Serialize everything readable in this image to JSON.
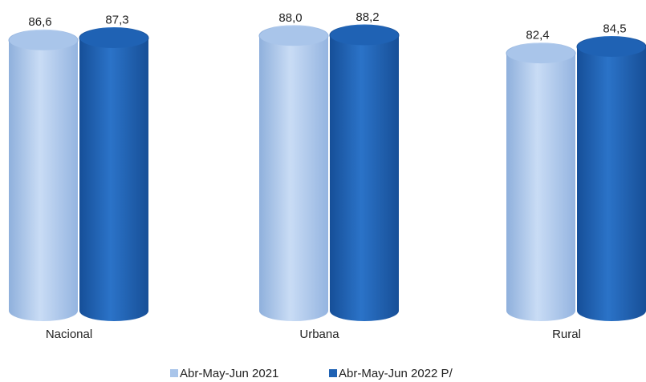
{
  "chart_data": {
    "type": "bar",
    "categories": [
      "Nacional",
      "Urbana",
      "Rural"
    ],
    "series": [
      {
        "name": "Abr-May-Jun 2021",
        "color": "#a9c5ea",
        "values": [
          86.6,
          88.0,
          82.4
        ],
        "value_labels": [
          "86,6",
          "88,0",
          "82,4"
        ]
      },
      {
        "name": "Abr-May-Jun 2022 P/",
        "color": "#1f62b4",
        "values": [
          87.3,
          88.2,
          84.5
        ],
        "value_labels": [
          "87,3",
          "88,2",
          "84,5"
        ]
      }
    ]
  }
}
